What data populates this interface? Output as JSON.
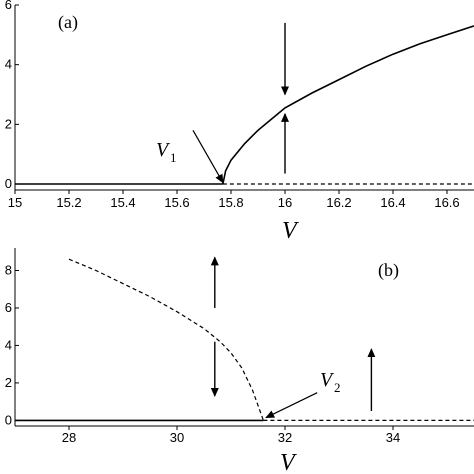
{
  "chart_data": [
    {
      "type": "line",
      "panel_label": "(a)",
      "xlabel": "V",
      "ylabel": "",
      "xlim": [
        15.0,
        16.7
      ],
      "ylim": [
        -0.2,
        6.0
      ],
      "x_ticks": [
        "15",
        "15.2",
        "15.4",
        "15.6",
        "15.8",
        "16",
        "16.2",
        "16.4",
        "16.6"
      ],
      "x_tick_values": [
        15.0,
        15.2,
        15.4,
        15.6,
        15.8,
        16.0,
        16.2,
        16.4,
        16.6
      ],
      "y_ticks": [
        "0",
        "2",
        "4",
        "6"
      ],
      "y_tick_values": [
        0,
        2,
        4,
        6
      ],
      "grid": false,
      "series": [
        {
          "style": "solid",
          "x": [
            15.0,
            15.77
          ],
          "y": [
            0,
            0
          ]
        },
        {
          "style": "dashed",
          "x": [
            15.77,
            16.7
          ],
          "y": [
            0,
            0
          ]
        },
        {
          "style": "solid",
          "x": [
            15.77,
            15.78,
            15.8,
            15.85,
            15.9,
            16.0,
            16.1,
            16.2,
            16.3,
            16.4,
            16.5,
            16.6,
            16.7
          ],
          "y": [
            0,
            0.44,
            0.8,
            1.35,
            1.8,
            2.55,
            3.05,
            3.5,
            3.95,
            4.35,
            4.7,
            5.0,
            5.3
          ]
        }
      ],
      "annotations": [
        {
          "text": "V",
          "subscript": "1",
          "x": 15.6,
          "y": 2.0,
          "arrow_to": [
            15.77,
            0.05
          ]
        }
      ],
      "arrows": [
        {
          "x": 16.0,
          "y_from": 5.4,
          "y_to": 3.0
        },
        {
          "x": 16.0,
          "y_from": 0.35,
          "y_to": 2.35
        }
      ]
    },
    {
      "type": "line",
      "panel_label": "(b)",
      "xlabel": "V",
      "ylabel": "",
      "xlim": [
        27.0,
        35.5
      ],
      "ylim": [
        -0.3,
        9.2
      ],
      "x_ticks": [
        "28",
        "30",
        "32",
        "34"
      ],
      "x_tick_values": [
        28,
        30,
        32,
        34
      ],
      "y_ticks": [
        "0",
        "2",
        "4",
        "6",
        "8"
      ],
      "y_tick_values": [
        0,
        2,
        4,
        6,
        8
      ],
      "grid": false,
      "series": [
        {
          "style": "solid",
          "x": [
            27.0,
            31.6
          ],
          "y": [
            0,
            0
          ]
        },
        {
          "style": "dashed",
          "x": [
            31.6,
            35.5
          ],
          "y": [
            0,
            0
          ]
        },
        {
          "style": "dashed",
          "x": [
            28.0,
            28.5,
            29.0,
            29.5,
            30.0,
            30.5,
            30.8,
            31.0,
            31.2,
            31.4,
            31.6
          ],
          "y": [
            8.6,
            8.0,
            7.3,
            6.6,
            5.8,
            4.9,
            4.2,
            3.6,
            2.8,
            1.6,
            0
          ]
        }
      ],
      "annotations": [
        {
          "text": "V",
          "subscript": "2",
          "x": 32.3,
          "y": 1.8,
          "arrow_to": [
            31.65,
            0.15
          ]
        }
      ],
      "arrows": [
        {
          "x": 30.7,
          "y_from": 6.0,
          "y_to": 8.7
        },
        {
          "x": 30.7,
          "y_from": 4.2,
          "y_to": 1.3
        },
        {
          "x": 33.6,
          "y_from": 0.5,
          "y_to": 3.8
        }
      ]
    }
  ]
}
